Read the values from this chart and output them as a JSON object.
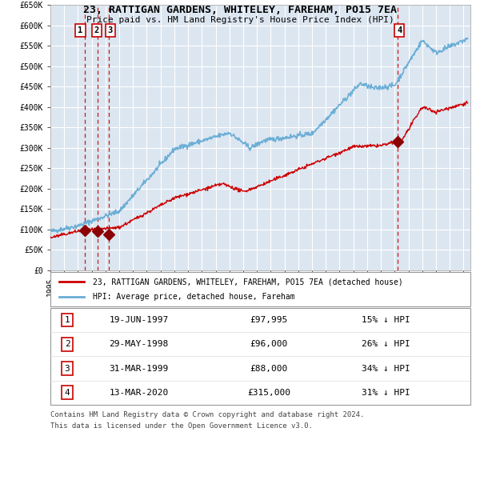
{
  "title1": "23, RATTIGAN GARDENS, WHITELEY, FAREHAM, PO15 7EA",
  "title2": "Price paid vs. HM Land Registry's House Price Index (HPI)",
  "bg_color": "#dce6f1",
  "grid_color": "#ffffff",
  "hpi_color": "#6baed6",
  "price_color": "#cc0000",
  "sale_marker_color": "#8b0000",
  "dashed_line_color": "#cc0000",
  "ylim": [
    0,
    650000
  ],
  "yticks": [
    0,
    50000,
    100000,
    150000,
    200000,
    250000,
    300000,
    350000,
    400000,
    450000,
    500000,
    550000,
    600000,
    650000
  ],
  "ytick_labels": [
    "£0",
    "£50K",
    "£100K",
    "£150K",
    "£200K",
    "£250K",
    "£300K",
    "£350K",
    "£400K",
    "£450K",
    "£500K",
    "£550K",
    "£600K",
    "£650K"
  ],
  "xlim_start": 1995.0,
  "xlim_end": 2025.5,
  "sales": [
    {
      "label": "1",
      "date": 1997.47,
      "price": 97995
    },
    {
      "label": "2",
      "date": 1998.41,
      "price": 96000
    },
    {
      "label": "3",
      "date": 1999.25,
      "price": 88000
    },
    {
      "label": "4",
      "date": 2020.19,
      "price": 315000
    }
  ],
  "legend_line1": "23, RATTIGAN GARDENS, WHITELEY, FAREHAM, PO15 7EA (detached house)",
  "legend_line2": "HPI: Average price, detached house, Fareham",
  "table_rows": [
    {
      "num": "1",
      "date": "19-JUN-1997",
      "price": "£97,995",
      "pct": "15% ↓ HPI"
    },
    {
      "num": "2",
      "date": "29-MAY-1998",
      "price": "£96,000",
      "pct": "26% ↓ HPI"
    },
    {
      "num": "3",
      "date": "31-MAR-1999",
      "price": "£88,000",
      "pct": "34% ↓ HPI"
    },
    {
      "num": "4",
      "date": "13-MAR-2020",
      "price": "£315,000",
      "pct": "31% ↓ HPI"
    }
  ],
  "footnote1": "Contains HM Land Registry data © Crown copyright and database right 2024.",
  "footnote2": "This data is licensed under the Open Government Licence v3.0."
}
